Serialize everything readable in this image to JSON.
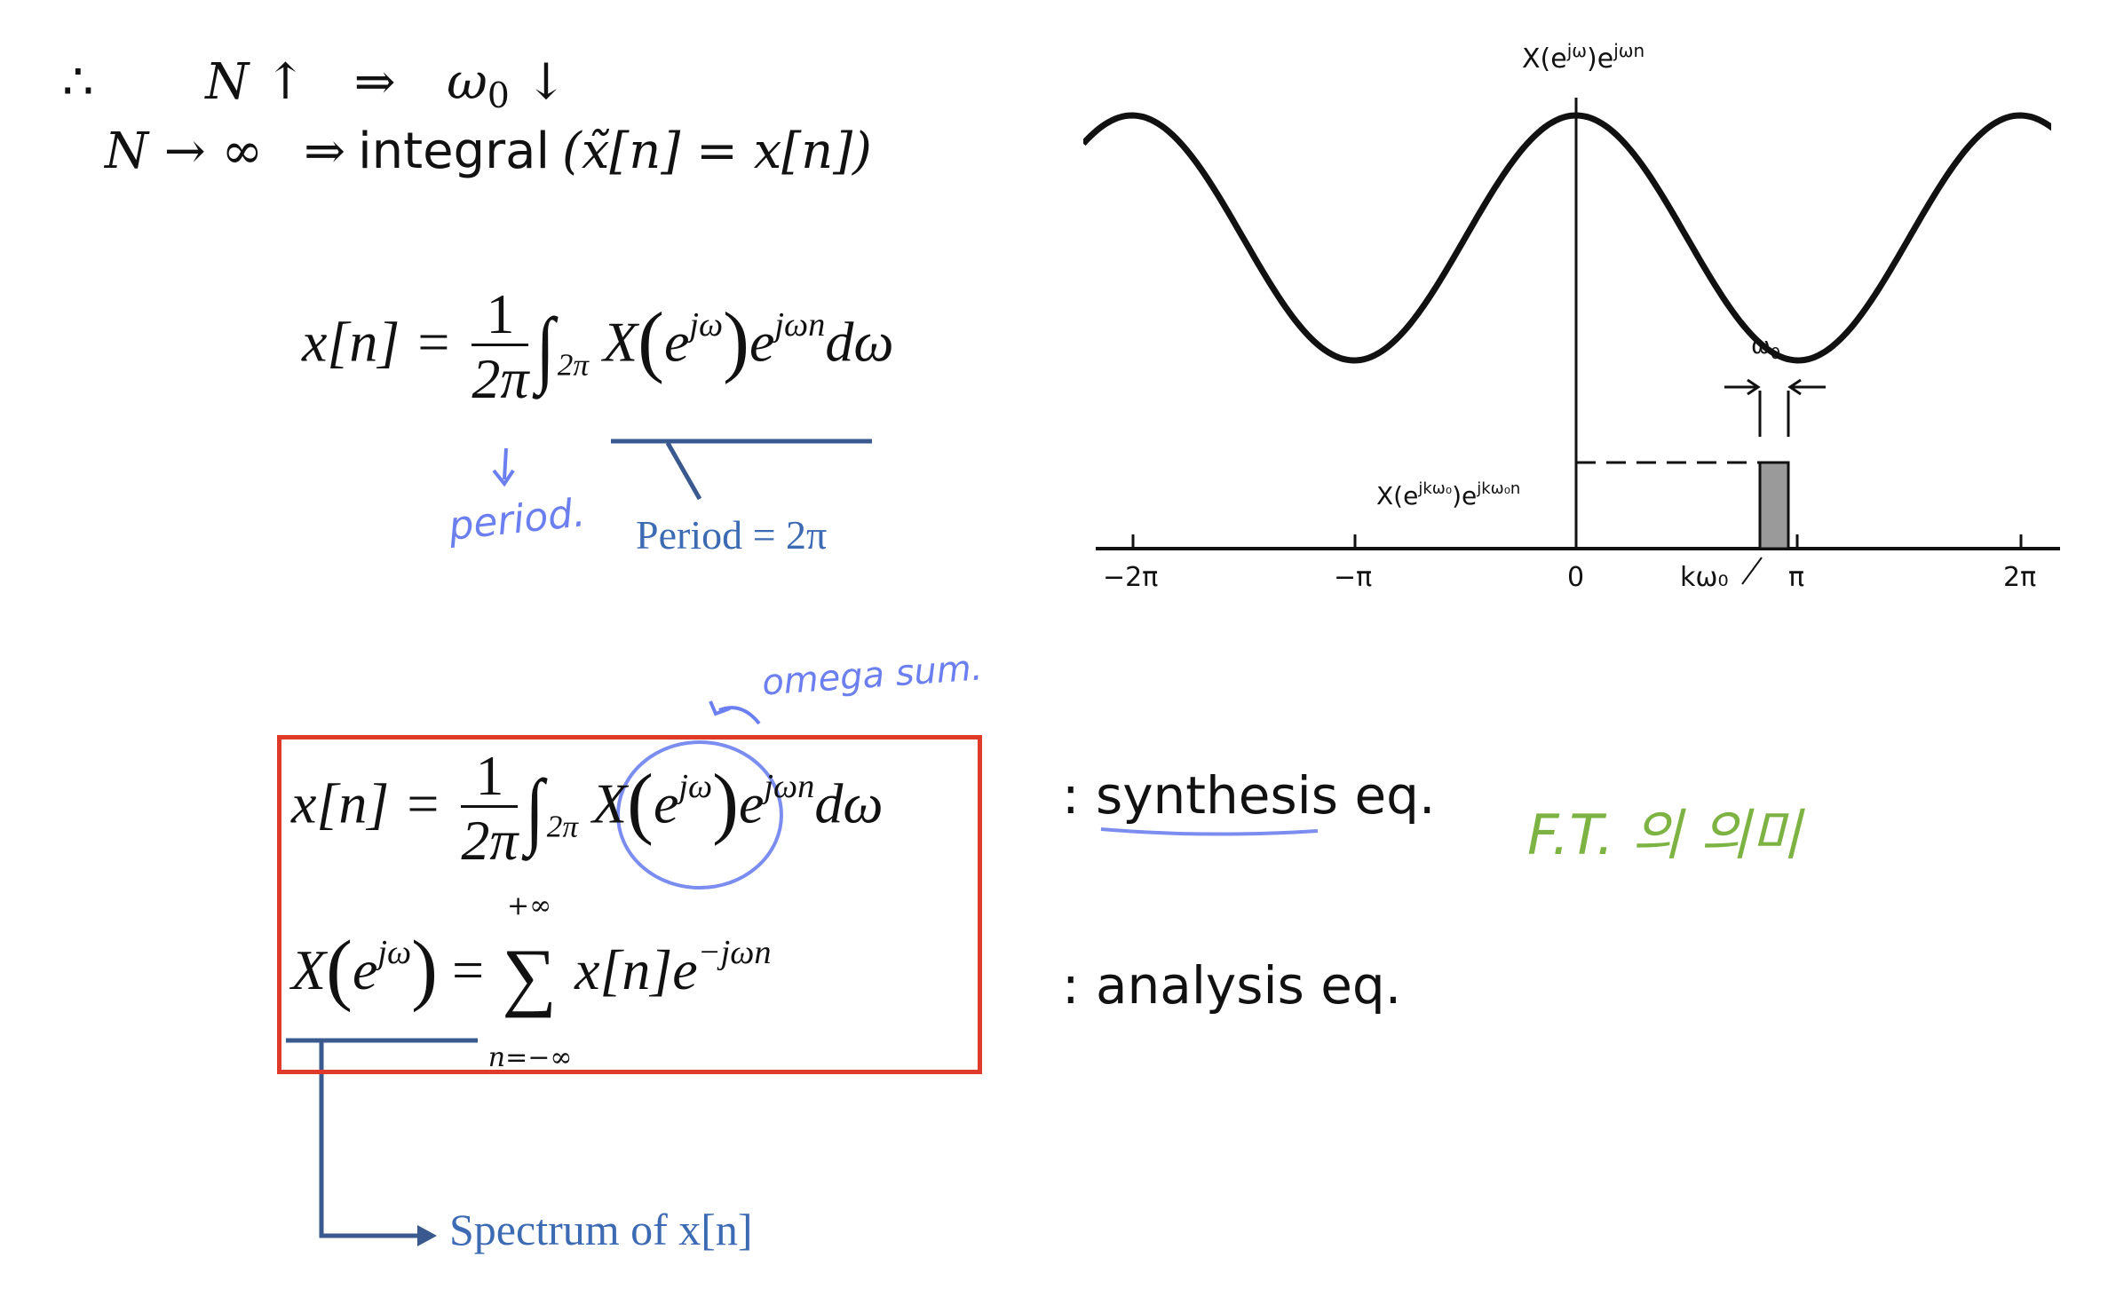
{
  "intro": {
    "therefore": "∴",
    "line1_lhs": "N ↑",
    "arrow1": "⇒",
    "line1_rhs": "ω",
    "line1_rhs_sub": "0",
    "line1_rhs_arrow": "↓",
    "line2_lhs": "N → ∞",
    "arrow2": "⇒",
    "line2_word": "integral",
    "line2_paren": "(x̃[n] = x[n])"
  },
  "top_equation": {
    "lhs": "x[n] =",
    "frac_num": "1",
    "frac_den": "2π",
    "integral": "∫",
    "integral_sub": "2π",
    "body_X": "X",
    "body_e": "e",
    "body_exp1": "jω",
    "body_e2": "e",
    "body_exp2": "jωn",
    "body_d": "dω"
  },
  "annotations": {
    "period_hand": "period.",
    "period_note": "Period = 2π",
    "omega_sum_hand": "omega sum.",
    "spectrum_note": "Spectrum of x[n]",
    "fi_hand": "F.T. 의 의미"
  },
  "boxed": {
    "synthesis": {
      "lhs": "x[n] =",
      "frac_num": "1",
      "frac_den": "2π",
      "integral": "∫",
      "integral_sub": "2π",
      "X": "X",
      "e": "e",
      "exp1": "jω",
      "e2": "e",
      "exp2": "jωn",
      "d": "dω"
    },
    "analysis": {
      "X": "X",
      "e": "e",
      "exp1": "jω",
      "eq": "=",
      "sum": "∑",
      "sum_top": "+∞",
      "sum_bottom": "n=−∞",
      "body": "x[n]e",
      "exp2": "−jωn"
    }
  },
  "labels": {
    "synthesis": ": synthesis eq.",
    "analysis": ": analysis eq."
  },
  "figure": {
    "top_label": "X(e",
    "top_label_sup": "jω",
    "top_label_mid": ")e",
    "top_label_sup2": "jωn",
    "omega0": "ω",
    "omega0_sub": "0",
    "curve_label": "X(e",
    "curve_label_sup": "jkω₀",
    "curve_label_mid": ")e",
    "curve_label_sup2": "jkω₀n",
    "ticks": [
      "−2π",
      "−π",
      "0",
      "kω₀",
      "π",
      "2π"
    ]
  }
}
